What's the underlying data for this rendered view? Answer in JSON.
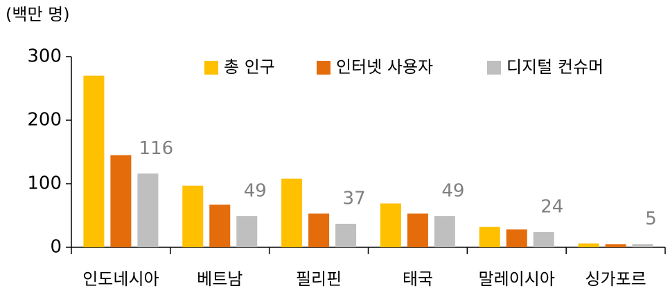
{
  "chart_data": {
    "type": "bar",
    "y_axis_label": "(백만 명)",
    "categories": [
      "인도네시아",
      "베트남",
      "필리핀",
      "태국",
      "말레이시아",
      "싱가포르"
    ],
    "series": [
      {
        "name": "총 인구",
        "color": "#FFC000",
        "values": [
          270,
          97,
          108,
          69,
          32,
          6
        ]
      },
      {
        "name": "인터넷 사용자",
        "color": "#E46C0A",
        "values": [
          145,
          67,
          53,
          53,
          28,
          5
        ]
      },
      {
        "name": "디지털 컨슈머",
        "color": "#BFBFBF",
        "values": [
          116,
          49,
          37,
          49,
          24,
          5
        ],
        "data_labels": true
      }
    ],
    "ylim": [
      0,
      300
    ],
    "yticks": [
      0,
      100,
      200,
      300
    ],
    "grid": false,
    "legend_position": "top-right"
  }
}
